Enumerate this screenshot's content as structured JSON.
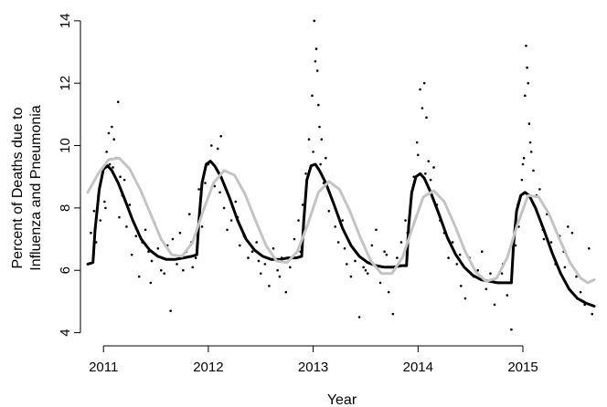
{
  "chart_data": {
    "type": "scatter",
    "xlabel": "Year",
    "ylabel_lines": [
      "Percent of Deaths due to",
      "Influenza and Pneumonia"
    ],
    "xlim": [
      2010.85,
      2015.68
    ],
    "ylim": [
      3.9,
      14.2
    ],
    "x_ticks": [
      2011,
      2012,
      2013,
      2014,
      2015
    ],
    "y_ticks": [
      4,
      6,
      8,
      10,
      12,
      14
    ],
    "grid": false,
    "legend": "none",
    "series_colors": {
      "points": "#000000",
      "fit_black": "#000000",
      "fit_gray": "#c4c4c4"
    },
    "series": [
      {
        "kind": "points",
        "x": [
          2010.88,
          2010.91,
          2010.93,
          2010.95,
          2010.97,
          2010.99,
          2011.01,
          2011.03,
          2011.05,
          2011.06,
          2011.08,
          2011.1,
          2011.12,
          2011.14,
          2011.16,
          2011.18,
          2011.2,
          2011.22,
          2011.25,
          2011.28,
          2011.31,
          2011.34,
          2011.37,
          2011.4,
          2011.43,
          2011.46,
          2011.49,
          2011.52,
          2011.55,
          2011.58,
          2011.61,
          2011.64,
          2011.67,
          2011.7,
          2011.73,
          2011.76,
          2011.79,
          2011.82,
          2011.85,
          2011.88,
          2011.91,
          2011.94,
          2011.97,
          2012.0,
          2012.03,
          2012.06,
          2012.09,
          2012.12,
          2012.15,
          2012.18,
          2012.22,
          2012.26,
          2012.3,
          2012.34,
          2012.38,
          2012.42,
          2012.46,
          2012.5,
          2012.54,
          2012.58,
          2012.62,
          2012.66,
          2012.7,
          2012.74,
          2012.78,
          2012.82,
          2012.86,
          2012.9,
          2012.93,
          2012.96,
          2012.99,
          2013.01,
          2013.02,
          2013.03,
          2013.04,
          2013.05,
          2013.06,
          2013.07,
          2013.08,
          2013.1,
          2013.12,
          2013.15,
          2013.18,
          2013.21,
          2013.24,
          2013.28,
          2013.32,
          2013.36,
          2013.4,
          2013.44,
          2013.48,
          2013.52,
          2013.56,
          2013.6,
          2013.64,
          2013.68,
          2013.72,
          2013.76,
          2013.8,
          2013.84,
          2013.88,
          2013.92,
          2013.96,
          2013.99,
          2014.02,
          2014.04,
          2014.06,
          2014.08,
          2014.1,
          2014.12,
          2014.15,
          2014.18,
          2014.21,
          2014.25,
          2014.29,
          2014.33,
          2014.37,
          2014.41,
          2014.45,
          2014.49,
          2014.53,
          2014.57,
          2014.61,
          2014.65,
          2014.69,
          2014.73,
          2014.77,
          2014.81,
          2014.85,
          2014.89,
          2014.93,
          2014.96,
          2014.99,
          2015.01,
          2015.02,
          2015.03,
          2015.04,
          2015.05,
          2015.06,
          2015.08,
          2015.1,
          2015.13,
          2015.16,
          2015.19,
          2015.23,
          2015.27,
          2015.31,
          2015.35,
          2015.39,
          2015.43,
          2015.47,
          2015.51,
          2015.55,
          2015.59,
          2015.63,
          2015.66,
          2011.02,
          2011.09,
          2011.15,
          2011.27,
          2011.45,
          2011.66,
          2011.84,
          2012.05,
          2012.11,
          2012.28,
          2012.48,
          2012.68,
          2012.88,
          2013.0,
          2013.09,
          2013.14,
          2013.3,
          2013.5,
          2013.7,
          2013.9,
          2014.0,
          2014.07,
          2014.2,
          2014.4,
          2014.6,
          2014.8,
          2014.95,
          2015.0,
          2015.07,
          2015.2,
          2015.4,
          2015.58
        ],
        "y": [
          7.2,
          7.9,
          6.9,
          8.4,
          7.6,
          9.1,
          8.2,
          9.8,
          10.4,
          9.4,
          10.6,
          10.2,
          9.6,
          11.4,
          9.0,
          8.4,
          8.9,
          7.4,
          8.1,
          7.6,
          7.1,
          5.8,
          6.9,
          7.3,
          6.6,
          6.3,
          7.5,
          6.7,
          6.0,
          5.9,
          6.8,
          4.7,
          6.5,
          6.2,
          7.2,
          6.0,
          6.6,
          7.8,
          6.1,
          6.4,
          8.6,
          7.4,
          8.8,
          9.4,
          10.0,
          8.7,
          9.9,
          10.3,
          8.0,
          7.3,
          7.6,
          8.2,
          6.8,
          7.1,
          6.4,
          6.6,
          6.9,
          5.9,
          6.2,
          5.5,
          6.7,
          6.0,
          6.4,
          5.3,
          6.1,
          7.0,
          7.6,
          8.1,
          9.1,
          10.2,
          11.6,
          14.0,
          12.7,
          13.1,
          12.4,
          11.3,
          10.6,
          9.4,
          10.2,
          8.8,
          9.6,
          7.9,
          8.3,
          7.4,
          6.9,
          7.6,
          6.2,
          5.8,
          6.3,
          4.5,
          6.1,
          5.9,
          6.8,
          7.3,
          5.6,
          6.6,
          5.3,
          4.6,
          6.4,
          6.9,
          7.6,
          7.8,
          9.0,
          10.1,
          11.8,
          11.2,
          12.0,
          10.9,
          9.5,
          8.9,
          9.3,
          8.1,
          7.6,
          7.2,
          6.4,
          6.9,
          6.2,
          5.5,
          5.1,
          6.4,
          5.8,
          6.0,
          6.6,
          5.4,
          5.9,
          4.9,
          5.6,
          6.2,
          5.2,
          4.1,
          6.8,
          7.4,
          8.9,
          9.6,
          11.6,
          13.2,
          12.5,
          12.0,
          10.7,
          9.8,
          9.2,
          8.4,
          8.6,
          7.3,
          7.8,
          6.9,
          6.2,
          7.1,
          6.6,
          7.4,
          7.2,
          5.8,
          5.3,
          4.9,
          6.7,
          4.6,
          8.0,
          9.3,
          7.7,
          6.5,
          5.6,
          7.0,
          6.9,
          8.8,
          8.5,
          7.7,
          6.3,
          5.8,
          6.6,
          9.8,
          9.0,
          8.6,
          6.7,
          6.0,
          6.5,
          7.2,
          9.7,
          9.1,
          7.8,
          6.5,
          5.7,
          5.9,
          8.1,
          9.4,
          10.1,
          7.0,
          6.1,
          5.0
        ]
      },
      {
        "kind": "line",
        "color": "#000000",
        "x": [
          2010.85,
          2010.9,
          2010.92,
          2010.96,
          2011.0,
          2011.04,
          2011.08,
          2011.14,
          2011.2,
          2011.28,
          2011.36,
          2011.44,
          2011.52,
          2011.6,
          2011.68,
          2011.76,
          2011.84,
          2011.89,
          2011.91,
          2011.94,
          2011.98,
          2012.02,
          2012.06,
          2012.12,
          2012.2,
          2012.28,
          2012.36,
          2012.44,
          2012.52,
          2012.6,
          2012.68,
          2012.76,
          2012.84,
          2012.89,
          2012.91,
          2012.94,
          2012.98,
          2013.02,
          2013.06,
          2013.12,
          2013.2,
          2013.28,
          2013.36,
          2013.44,
          2013.52,
          2013.6,
          2013.68,
          2013.76,
          2013.84,
          2013.89,
          2013.91,
          2013.94,
          2013.98,
          2014.02,
          2014.06,
          2014.12,
          2014.2,
          2014.28,
          2014.36,
          2014.44,
          2014.52,
          2014.6,
          2014.68,
          2014.76,
          2014.84,
          2014.89,
          2014.91,
          2014.94,
          2014.98,
          2015.02,
          2015.06,
          2015.12,
          2015.2,
          2015.28,
          2015.36,
          2015.44,
          2015.52,
          2015.6,
          2015.68
        ],
        "y": [
          6.2,
          6.25,
          7.3,
          8.6,
          9.25,
          9.35,
          9.2,
          8.8,
          8.3,
          7.6,
          7.0,
          6.65,
          6.45,
          6.35,
          6.35,
          6.4,
          6.45,
          6.5,
          7.6,
          8.8,
          9.4,
          9.5,
          9.35,
          9.0,
          8.35,
          7.6,
          7.0,
          6.65,
          6.45,
          6.35,
          6.35,
          6.4,
          6.4,
          6.45,
          7.6,
          8.9,
          9.35,
          9.4,
          9.2,
          8.8,
          8.1,
          7.35,
          6.8,
          6.45,
          6.25,
          6.15,
          6.1,
          6.1,
          6.15,
          6.15,
          7.4,
          8.5,
          9.0,
          9.1,
          8.95,
          8.5,
          7.8,
          7.05,
          6.5,
          6.1,
          5.85,
          5.7,
          5.65,
          5.6,
          5.6,
          5.6,
          6.8,
          7.9,
          8.4,
          8.5,
          8.4,
          8.0,
          7.3,
          6.55,
          5.9,
          5.4,
          5.1,
          4.95,
          4.85
        ]
      },
      {
        "kind": "line",
        "color": "#c4c4c4",
        "x": [
          2010.85,
          2010.95,
          2011.05,
          2011.15,
          2011.25,
          2011.35,
          2011.45,
          2011.55,
          2011.65,
          2011.75,
          2011.85,
          2011.95,
          2012.05,
          2012.15,
          2012.25,
          2012.35,
          2012.45,
          2012.55,
          2012.65,
          2012.75,
          2012.85,
          2012.95,
          2013.05,
          2013.15,
          2013.25,
          2013.35,
          2013.45,
          2013.55,
          2013.65,
          2013.75,
          2013.85,
          2013.95,
          2014.05,
          2014.15,
          2014.25,
          2014.35,
          2014.45,
          2014.55,
          2014.65,
          2014.75,
          2014.85,
          2014.95,
          2015.05,
          2015.15,
          2015.25,
          2015.35,
          2015.45,
          2015.55,
          2015.62,
          2015.68
        ],
        "y": [
          8.5,
          9.1,
          9.55,
          9.6,
          9.25,
          8.6,
          7.8,
          7.0,
          6.5,
          6.45,
          6.9,
          7.9,
          8.8,
          9.2,
          9.05,
          8.45,
          7.6,
          6.8,
          6.3,
          6.25,
          6.6,
          7.5,
          8.5,
          8.85,
          8.6,
          7.9,
          7.05,
          6.3,
          5.9,
          5.9,
          6.4,
          7.4,
          8.35,
          8.55,
          8.2,
          7.45,
          6.6,
          5.95,
          5.65,
          5.75,
          6.4,
          7.5,
          8.4,
          8.35,
          7.8,
          7.0,
          6.25,
          5.75,
          5.6,
          5.7
        ]
      }
    ]
  }
}
